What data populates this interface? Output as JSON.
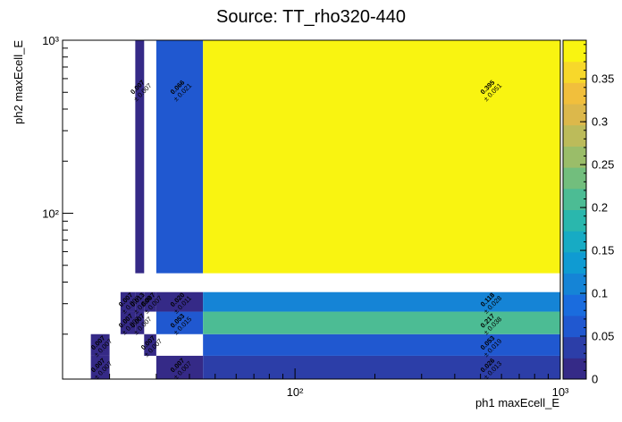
{
  "chart_data": {
    "type": "heatmap",
    "title": "Source: TT_rho320-440",
    "xlabel": "ph1 maxEcell_E",
    "ylabel": "ph2 maxEcell_E",
    "x_scale": "log",
    "y_scale": "log",
    "x_major_ticks": [
      {
        "value": 100,
        "label": "10²"
      },
      {
        "value": 1000,
        "label": "10³"
      }
    ],
    "y_major_ticks": [
      {
        "value": 100,
        "label": "10²"
      },
      {
        "value": 1000,
        "label": "10³"
      }
    ],
    "x_bin_edges": [
      13.3,
      15,
      17,
      20,
      22,
      25,
      27,
      30,
      45,
      1000
    ],
    "y_bin_edges": [
      11,
      15,
      20,
      27,
      35,
      45,
      1000
    ],
    "colorbar": {
      "min": 0,
      "max": 0.395,
      "ticks": [
        {
          "value": 0,
          "label": "0"
        },
        {
          "value": 0.05,
          "label": "0.05"
        },
        {
          "value": 0.1,
          "label": "0.1"
        },
        {
          "value": 0.15,
          "label": "0.15"
        },
        {
          "value": 0.2,
          "label": "0.2"
        },
        {
          "value": 0.25,
          "label": "0.25"
        },
        {
          "value": 0.3,
          "label": "0.3"
        },
        {
          "value": 0.35,
          "label": "0.35"
        }
      ]
    },
    "cells": [
      {
        "xi": 2,
        "yi": 0,
        "value": 0.007,
        "label": "0.007",
        "error": "± 0.007"
      },
      {
        "xi": 2,
        "yi": 1,
        "value": 0.007,
        "label": "0.007",
        "error": "± 0.007"
      },
      {
        "xi": 6,
        "yi": 1,
        "value": 0.007,
        "label": "0.007",
        "error": "± 0.007"
      },
      {
        "xi": 4,
        "yi": 2,
        "value": 0.007,
        "label": "0.007",
        "error": "± 0.007"
      },
      {
        "xi": 5,
        "yi": 2,
        "value": 0.007,
        "label": "0.007",
        "error": "± 0.007"
      },
      {
        "xi": 7,
        "yi": 2,
        "value": 0.053,
        "label": "0.053",
        "error": "± 0.015"
      },
      {
        "xi": 4,
        "yi": 3,
        "value": 0.007,
        "label": "0.007",
        "error": "± 0.007"
      },
      {
        "xi": 5,
        "yi": 3,
        "value": 0.013,
        "label": "0.013",
        "error": "± 0.009"
      },
      {
        "xi": 6,
        "yi": 3,
        "value": 0.007,
        "label": "0.007",
        "error": "± 0.007"
      },
      {
        "xi": 7,
        "yi": 3,
        "value": 0.02,
        "label": "0.020",
        "error": "± 0.011"
      },
      {
        "xi": 5,
        "yi": 5,
        "value": 0.007,
        "label": "0.007",
        "error": "± 0.007"
      },
      {
        "xi": 7,
        "yi": 5,
        "value": 0.066,
        "label": "0.066",
        "error": "± 0.021"
      },
      {
        "xi": 7,
        "yi": 0,
        "value": 0.007,
        "label": "0.007",
        "error": "± 0.007"
      },
      {
        "xi": 8,
        "yi": 0,
        "value": 0.026,
        "label": "0.026",
        "error": "± 0.013"
      },
      {
        "xi": 8,
        "yi": 1,
        "value": 0.053,
        "label": "0.053",
        "error": "± 0.019"
      },
      {
        "xi": 8,
        "yi": 2,
        "value": 0.217,
        "label": "0.217",
        "error": "± 0.038"
      },
      {
        "xi": 8,
        "yi": 3,
        "value": 0.118,
        "label": "0.118",
        "error": "± 0.028"
      },
      {
        "xi": 8,
        "yi": 5,
        "value": 0.395,
        "label": "0.395",
        "error": "± 0.051"
      }
    ]
  }
}
